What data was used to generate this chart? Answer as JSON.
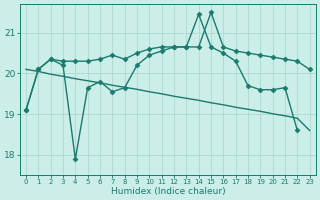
{
  "title": "",
  "xlabel": "Humidex (Indice chaleur)",
  "ylabel": "",
  "xlim": [
    -0.5,
    23.5
  ],
  "ylim": [
    17.5,
    21.7
  ],
  "yticks": [
    18,
    19,
    20,
    21
  ],
  "xticks": [
    0,
    1,
    2,
    3,
    4,
    5,
    6,
    7,
    8,
    9,
    10,
    11,
    12,
    13,
    14,
    15,
    16,
    17,
    18,
    19,
    20,
    21,
    22,
    23
  ],
  "bg_color": "#cceee8",
  "line_color": "#1a7a6e",
  "grid_color": "#b0d8d0",
  "lines": [
    {
      "x": [
        0,
        1,
        2,
        3,
        4,
        5,
        6,
        7,
        8,
        9,
        10,
        11,
        12,
        13,
        14,
        15,
        16,
        17,
        18,
        19,
        20,
        21,
        22,
        23
      ],
      "y": [
        19.1,
        20.1,
        20.35,
        20.2,
        17.9,
        19.65,
        19.8,
        19.55,
        19.65,
        20.2,
        20.45,
        20.55,
        20.65,
        20.65,
        21.45,
        20.65,
        20.5,
        20.3,
        19.7,
        19.6,
        19.6,
        19.65,
        18.6,
        null
      ],
      "marker": true,
      "markersize": 2.5,
      "linewidth": 1.0
    },
    {
      "x": [
        0,
        1,
        2,
        3,
        4,
        5,
        6,
        7,
        8,
        9,
        10,
        11,
        12,
        13,
        14,
        15,
        16,
        17,
        18,
        19,
        20,
        21,
        22,
        23
      ],
      "y": [
        20.1,
        20.05,
        19.98,
        19.93,
        19.87,
        19.82,
        19.77,
        19.71,
        19.66,
        19.61,
        19.55,
        19.5,
        19.44,
        19.39,
        19.34,
        19.28,
        19.23,
        19.17,
        19.12,
        19.07,
        19.01,
        18.96,
        18.9,
        18.6
      ],
      "marker": false,
      "markersize": 0,
      "linewidth": 1.0
    },
    {
      "x": [
        0,
        1,
        2,
        3,
        4,
        5,
        6,
        7,
        8,
        9,
        10,
        11,
        12,
        13,
        14,
        15,
        16,
        17,
        18,
        19,
        20,
        21,
        22,
        23
      ],
      "y": [
        19.1,
        20.1,
        20.35,
        20.3,
        20.3,
        20.3,
        20.35,
        20.45,
        20.35,
        20.5,
        20.6,
        20.65,
        20.65,
        20.65,
        20.65,
        21.5,
        20.65,
        20.55,
        20.5,
        20.45,
        20.4,
        20.35,
        20.3,
        20.1
      ],
      "marker": true,
      "markersize": 2.5,
      "linewidth": 1.0
    }
  ]
}
